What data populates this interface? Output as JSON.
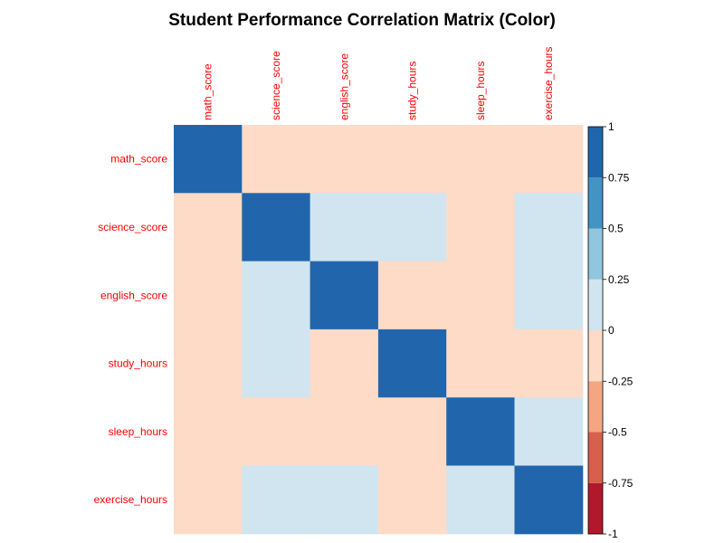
{
  "chart_data": {
    "type": "heatmap",
    "title": "Student Performance Correlation Matrix (Color)",
    "variables": [
      "math_score",
      "science_score",
      "english_score",
      "study_hours",
      "sleep_hours",
      "exercise_hours"
    ],
    "matrix": [
      [
        1.0,
        -0.1,
        -0.1,
        -0.1,
        -0.1,
        -0.1
      ],
      [
        -0.1,
        1.0,
        0.1,
        0.1,
        -0.1,
        0.1
      ],
      [
        -0.1,
        0.1,
        1.0,
        -0.1,
        -0.1,
        0.1
      ],
      [
        -0.1,
        0.1,
        -0.1,
        1.0,
        -0.1,
        -0.1
      ],
      [
        -0.1,
        -0.1,
        -0.1,
        -0.1,
        1.0,
        0.1
      ],
      [
        -0.1,
        0.1,
        0.1,
        -0.1,
        0.1,
        1.0
      ]
    ],
    "label_color": "#ff0000",
    "colorbar": {
      "range": [
        -1,
        1
      ],
      "breaks": [
        -1,
        -0.75,
        -0.5,
        -0.25,
        0,
        0.25,
        0.5,
        0.75,
        1
      ],
      "tick_labels": [
        "-1",
        "-0.75",
        "-0.5",
        "-0.25",
        "0",
        "0.25",
        "0.5",
        "0.75",
        "1"
      ],
      "bin_colors": [
        "#b2182b",
        "#d6604d",
        "#f4a582",
        "#fddbc7",
        "#d1e5f0",
        "#92c5de",
        "#4393c3",
        "#2166ac"
      ]
    }
  }
}
